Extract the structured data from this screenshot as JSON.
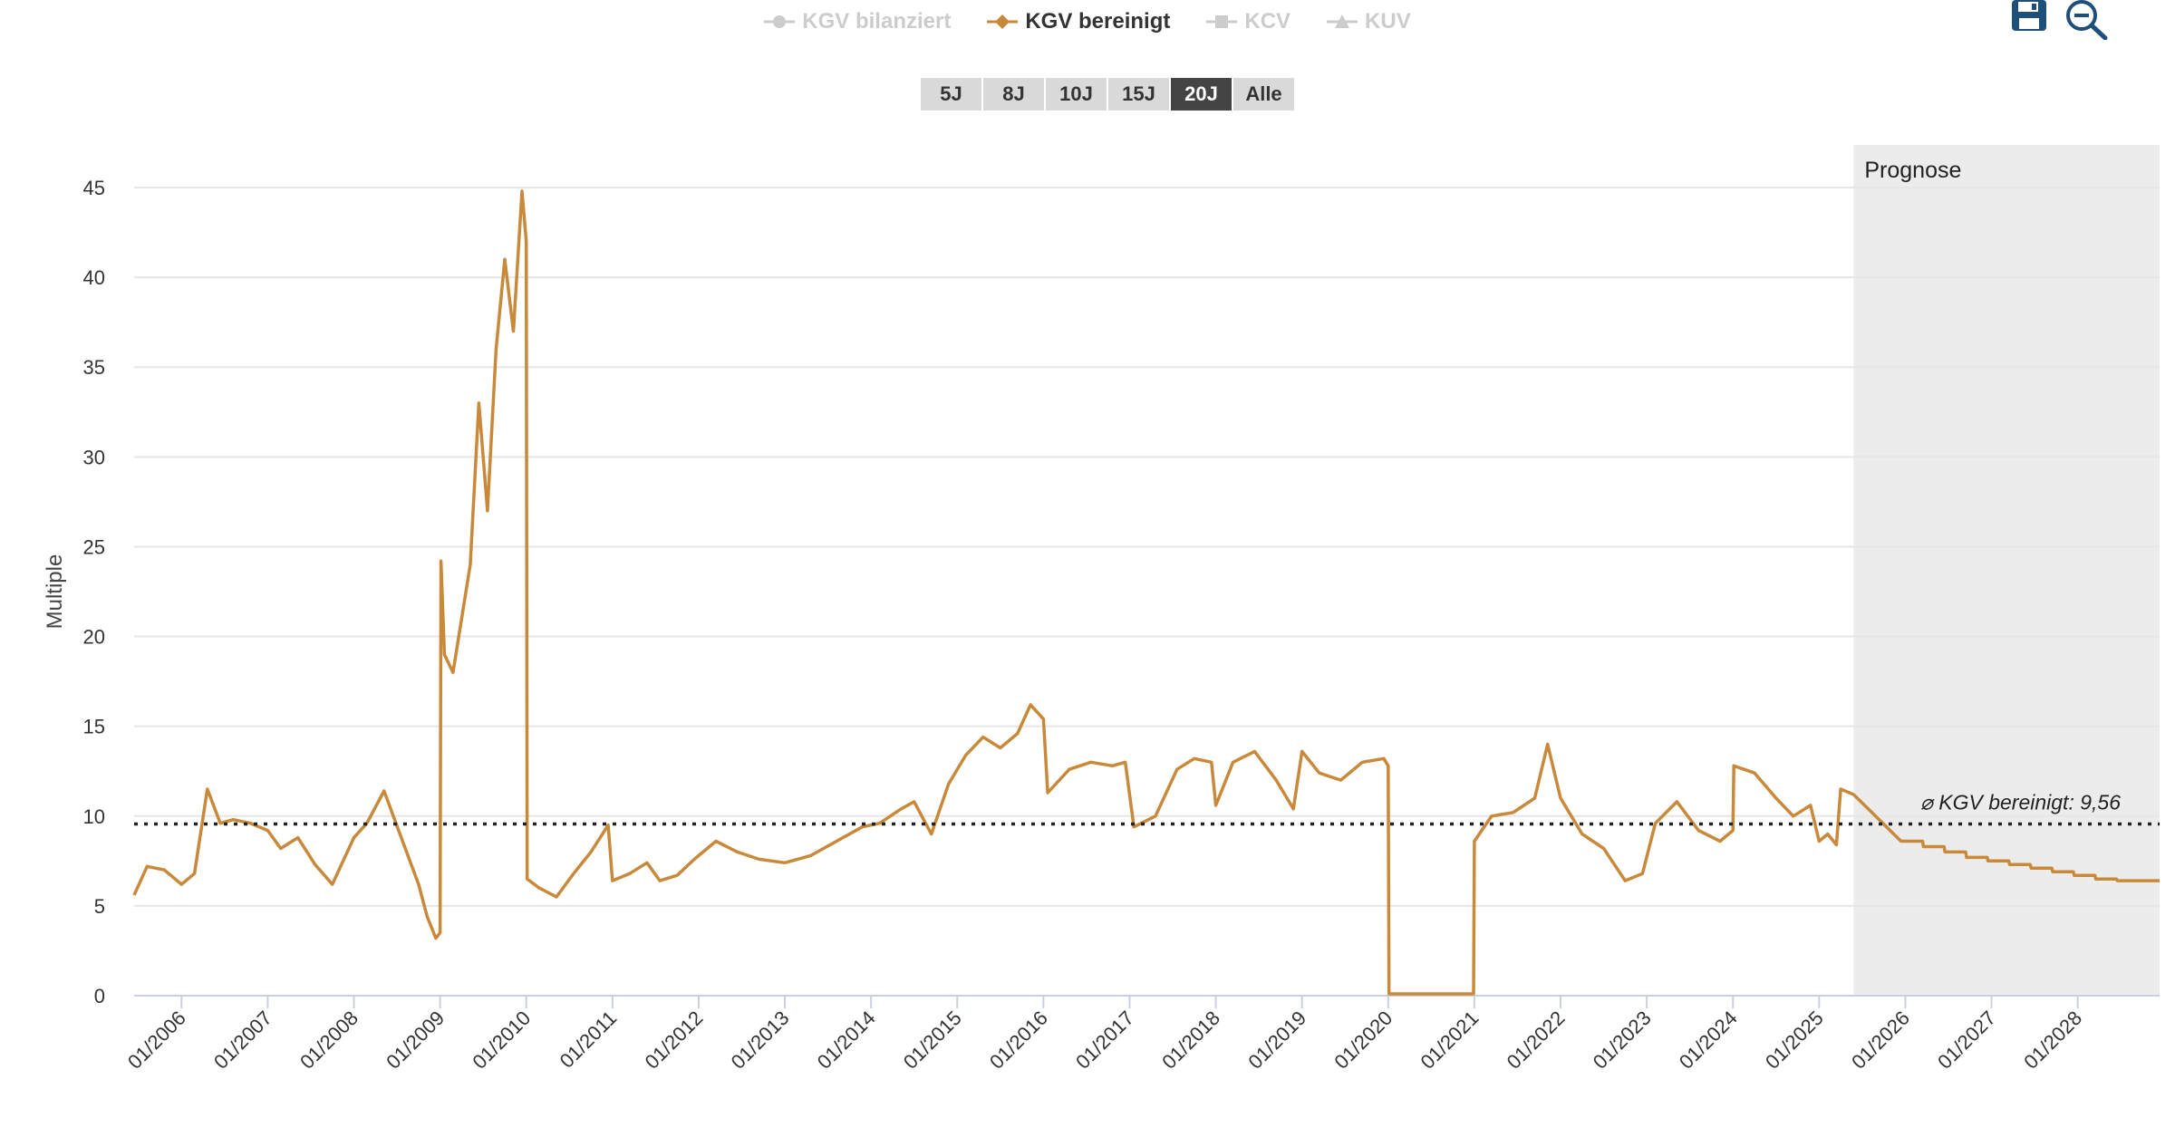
{
  "legend": [
    {
      "label": "KGV bilanziert",
      "icon": "circle-marker-icon",
      "active": false
    },
    {
      "label": "KGV bereinigt",
      "icon": "diamond-marker-icon",
      "active": true
    },
    {
      "label": "KCV",
      "icon": "square-marker-icon",
      "active": false
    },
    {
      "label": "KUV",
      "icon": "triangle-marker-icon",
      "active": false
    }
  ],
  "range_buttons": [
    "5J",
    "8J",
    "10J",
    "15J",
    "20J",
    "Alle"
  ],
  "active_range": "20J",
  "tools": [
    "save-icon",
    "zoom-out-icon"
  ],
  "colors": {
    "series": "#c8893a",
    "forecast_band": "#ececec",
    "grid": "#e6e6e6",
    "accent_dark": "#1f4e79"
  },
  "chart_data": {
    "type": "line",
    "ylabel": "Multiple",
    "ylim": [
      0,
      45
    ],
    "yticks": [
      "0",
      "5",
      "10",
      "15",
      "20",
      "25",
      "30",
      "35",
      "40",
      "45"
    ],
    "x_range": [
      2005.45,
      2028.95
    ],
    "xticks": [
      {
        "label": "01/2006",
        "x": 2006
      },
      {
        "label": "01/2007",
        "x": 2007
      },
      {
        "label": "01/2008",
        "x": 2008
      },
      {
        "label": "01/2009",
        "x": 2009
      },
      {
        "label": "01/2010",
        "x": 2010
      },
      {
        "label": "01/2011",
        "x": 2011
      },
      {
        "label": "01/2012",
        "x": 2012
      },
      {
        "label": "01/2013",
        "x": 2013
      },
      {
        "label": "01/2014",
        "x": 2014
      },
      {
        "label": "01/2015",
        "x": 2015
      },
      {
        "label": "01/2016",
        "x": 2016
      },
      {
        "label": "01/2017",
        "x": 2017
      },
      {
        "label": "01/2018",
        "x": 2018
      },
      {
        "label": "01/2019",
        "x": 2019
      },
      {
        "label": "01/2020",
        "x": 2020
      },
      {
        "label": "01/2021",
        "x": 2021
      },
      {
        "label": "01/2022",
        "x": 2022
      },
      {
        "label": "01/2023",
        "x": 2023
      },
      {
        "label": "01/2024",
        "x": 2024
      },
      {
        "label": "01/2025",
        "x": 2025
      },
      {
        "label": "01/2026",
        "x": 2026
      },
      {
        "label": "01/2027",
        "x": 2027
      },
      {
        "label": "01/2028",
        "x": 2028
      }
    ],
    "forecast_start": 2025.4,
    "forecast_label": "Prognose",
    "average": {
      "value": 9.56,
      "label": "⌀ KGV bereinigt: 9,56"
    },
    "series": [
      {
        "name": "KGV bereinigt",
        "color": "#c8893a",
        "points": [
          [
            2005.45,
            5.6
          ],
          [
            2005.6,
            7.2
          ],
          [
            2005.8,
            7.0
          ],
          [
            2006.0,
            6.2
          ],
          [
            2006.15,
            6.8
          ],
          [
            2006.3,
            11.5
          ],
          [
            2006.45,
            9.6
          ],
          [
            2006.6,
            9.8
          ],
          [
            2006.8,
            9.6
          ],
          [
            2007.0,
            9.2
          ],
          [
            2007.15,
            8.2
          ],
          [
            2007.35,
            8.8
          ],
          [
            2007.55,
            7.3
          ],
          [
            2007.75,
            6.2
          ],
          [
            2008.0,
            8.8
          ],
          [
            2008.15,
            9.6
          ],
          [
            2008.35,
            11.4
          ],
          [
            2008.55,
            8.8
          ],
          [
            2008.75,
            6.2
          ],
          [
            2008.85,
            4.4
          ],
          [
            2008.95,
            3.2
          ],
          [
            2009.0,
            3.5
          ],
          [
            2009.01,
            24.2
          ],
          [
            2009.05,
            19.0
          ],
          [
            2009.15,
            18.0
          ],
          [
            2009.25,
            21.0
          ],
          [
            2009.35,
            24.0
          ],
          [
            2009.45,
            33.0
          ],
          [
            2009.55,
            27.0
          ],
          [
            2009.65,
            36.0
          ],
          [
            2009.75,
            41.0
          ],
          [
            2009.85,
            37.0
          ],
          [
            2009.95,
            44.8
          ],
          [
            2010.0,
            42.0
          ],
          [
            2010.01,
            6.5
          ],
          [
            2010.15,
            6.0
          ],
          [
            2010.35,
            5.5
          ],
          [
            2010.55,
            6.8
          ],
          [
            2010.75,
            8.0
          ],
          [
            2010.95,
            9.5
          ],
          [
            2011.0,
            6.4
          ],
          [
            2011.2,
            6.8
          ],
          [
            2011.4,
            7.4
          ],
          [
            2011.55,
            6.4
          ],
          [
            2011.75,
            6.7
          ],
          [
            2011.95,
            7.6
          ],
          [
            2012.2,
            8.6
          ],
          [
            2012.45,
            8.0
          ],
          [
            2012.7,
            7.6
          ],
          [
            2013.0,
            7.4
          ],
          [
            2013.3,
            7.8
          ],
          [
            2013.6,
            8.6
          ],
          [
            2013.9,
            9.4
          ],
          [
            2014.1,
            9.6
          ],
          [
            2014.35,
            10.4
          ],
          [
            2014.5,
            10.8
          ],
          [
            2014.7,
            9.0
          ],
          [
            2014.9,
            11.8
          ],
          [
            2015.1,
            13.4
          ],
          [
            2015.3,
            14.4
          ],
          [
            2015.5,
            13.8
          ],
          [
            2015.7,
            14.6
          ],
          [
            2015.85,
            16.2
          ],
          [
            2016.0,
            15.4
          ],
          [
            2016.05,
            11.3
          ],
          [
            2016.3,
            12.6
          ],
          [
            2016.55,
            13.0
          ],
          [
            2016.8,
            12.8
          ],
          [
            2016.95,
            13.0
          ],
          [
            2017.05,
            9.4
          ],
          [
            2017.3,
            10.0
          ],
          [
            2017.55,
            12.6
          ],
          [
            2017.75,
            13.2
          ],
          [
            2017.95,
            13.0
          ],
          [
            2018.0,
            10.6
          ],
          [
            2018.2,
            13.0
          ],
          [
            2018.45,
            13.6
          ],
          [
            2018.7,
            12.0
          ],
          [
            2018.9,
            10.4
          ],
          [
            2019.0,
            13.6
          ],
          [
            2019.2,
            12.4
          ],
          [
            2019.45,
            12.0
          ],
          [
            2019.7,
            13.0
          ],
          [
            2019.95,
            13.2
          ],
          [
            2020.0,
            12.8
          ],
          [
            2020.01,
            0.1
          ],
          [
            2020.5,
            0.1
          ],
          [
            2020.99,
            0.1
          ],
          [
            2021.0,
            8.6
          ],
          [
            2021.2,
            10.0
          ],
          [
            2021.45,
            10.2
          ],
          [
            2021.7,
            11.0
          ],
          [
            2021.85,
            14.0
          ],
          [
            2022.0,
            11.0
          ],
          [
            2022.25,
            9.0
          ],
          [
            2022.5,
            8.2
          ],
          [
            2022.75,
            6.4
          ],
          [
            2022.95,
            6.8
          ],
          [
            2023.1,
            9.6
          ],
          [
            2023.35,
            10.8
          ],
          [
            2023.6,
            9.2
          ],
          [
            2023.85,
            8.6
          ],
          [
            2024.0,
            9.2
          ],
          [
            2024.01,
            12.8
          ],
          [
            2024.25,
            12.4
          ],
          [
            2024.5,
            11.0
          ],
          [
            2024.7,
            10.0
          ],
          [
            2024.9,
            10.6
          ],
          [
            2025.0,
            8.6
          ],
          [
            2025.1,
            9.0
          ],
          [
            2025.2,
            8.4
          ],
          [
            2025.25,
            11.5
          ],
          [
            2025.4,
            11.2
          ],
          [
            2025.95,
            8.6
          ],
          [
            2026.2,
            8.6
          ],
          [
            2026.21,
            8.3
          ],
          [
            2026.45,
            8.3
          ],
          [
            2026.46,
            8.0
          ],
          [
            2026.7,
            8.0
          ],
          [
            2026.71,
            7.7
          ],
          [
            2026.95,
            7.7
          ],
          [
            2026.96,
            7.5
          ],
          [
            2027.2,
            7.5
          ],
          [
            2027.21,
            7.3
          ],
          [
            2027.45,
            7.3
          ],
          [
            2027.46,
            7.1
          ],
          [
            2027.7,
            7.1
          ],
          [
            2027.71,
            6.9
          ],
          [
            2027.95,
            6.9
          ],
          [
            2027.96,
            6.7
          ],
          [
            2028.2,
            6.7
          ],
          [
            2028.21,
            6.5
          ],
          [
            2028.45,
            6.5
          ],
          [
            2028.46,
            6.4
          ],
          [
            2028.95,
            6.4
          ]
        ]
      }
    ]
  }
}
